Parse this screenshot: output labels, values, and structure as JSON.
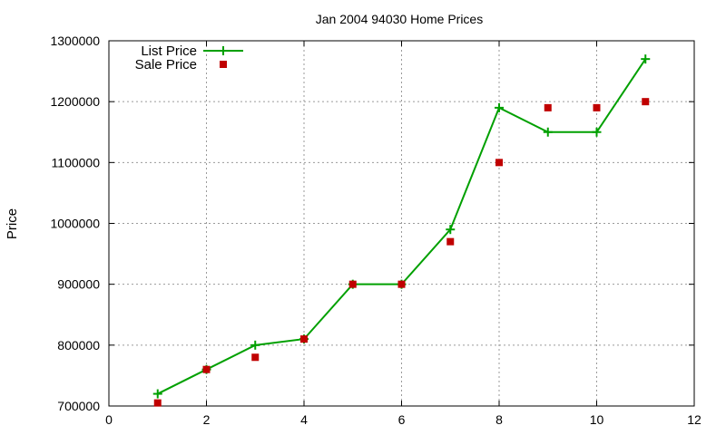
{
  "chart_data": {
    "type": "line",
    "title": "Jan 2004 94030 Home Prices",
    "xlabel": "",
    "ylabel": "Price",
    "xlim": [
      0,
      12
    ],
    "ylim": [
      700000,
      1300000
    ],
    "x_ticks": [
      "0",
      "2",
      "4",
      "6",
      "8",
      "10",
      "12"
    ],
    "y_ticks": [
      "700000",
      "800000",
      "900000",
      "1000000",
      "1100000",
      "1200000",
      "1300000"
    ],
    "grid": true,
    "legend_position": "top-left",
    "series": [
      {
        "name": "List Price",
        "style": "line-with-plus-markers",
        "color": "#00a000",
        "x": [
          1,
          2,
          3,
          4,
          5,
          6,
          7,
          8,
          9,
          10,
          11
        ],
        "y": [
          720000,
          760000,
          800000,
          810000,
          900000,
          900000,
          990000,
          1190000,
          1150000,
          1150000,
          1270000
        ]
      },
      {
        "name": "Sale Price",
        "style": "square-markers",
        "color": "#c00000",
        "x": [
          1,
          2,
          3,
          4,
          5,
          6,
          7,
          8,
          9,
          10,
          11
        ],
        "y": [
          705000,
          760000,
          780000,
          810000,
          900000,
          900000,
          970000,
          1100000,
          1190000,
          1190000,
          1200000
        ]
      }
    ]
  }
}
